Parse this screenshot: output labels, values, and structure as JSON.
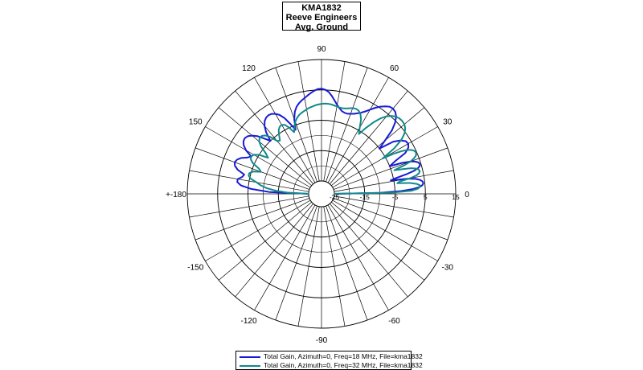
{
  "title_lines": [
    "KMA1832",
    "Reeve Engineers",
    "Avg. Ground"
  ],
  "chart_data": {
    "type": "polar",
    "radial_scale": {
      "min": -25,
      "max": 15,
      "ticks": [
        -25,
        -15,
        -5,
        5,
        15
      ],
      "tick_labels": [
        "-25",
        "-15",
        "-5",
        "5",
        "15"
      ]
    },
    "angle_labels": [
      {
        "angle": 0,
        "label": "0"
      },
      {
        "angle": 30,
        "label": "30"
      },
      {
        "angle": 60,
        "label": "60"
      },
      {
        "angle": 90,
        "label": "90"
      },
      {
        "angle": 120,
        "label": "120"
      },
      {
        "angle": 150,
        "label": "150"
      },
      {
        "angle": 180,
        "label": "+-180"
      },
      {
        "angle": -150,
        "label": "-150"
      },
      {
        "angle": -120,
        "label": "-120"
      },
      {
        "angle": -90,
        "label": "-90"
      },
      {
        "angle": -60,
        "label": "-60"
      },
      {
        "angle": -30,
        "label": "-30"
      }
    ],
    "grid": true,
    "spoke_step_deg": 10,
    "legend_position": "bottom-center",
    "series": [
      {
        "name": "Total Gain, Azimuth=0, Freq=18 MHz, File=kma1832",
        "color": "#1a1ad6",
        "angles": [
          0,
          1,
          2,
          3,
          4,
          5,
          6,
          7,
          8,
          9,
          10,
          11,
          12,
          13,
          14,
          15,
          16,
          17,
          18,
          19,
          20,
          21,
          22,
          24,
          26,
          28,
          30,
          32,
          34,
          36,
          38,
          40,
          42,
          44,
          46,
          48,
          50,
          52,
          54,
          56,
          58,
          60,
          62,
          64,
          66,
          68,
          70,
          72,
          74,
          76,
          78,
          80,
          82,
          84,
          86,
          88,
          90,
          92,
          94,
          96,
          98,
          100,
          102,
          104,
          106,
          108,
          110,
          112,
          114,
          116,
          118,
          120,
          122,
          124,
          126,
          128,
          130,
          132,
          134,
          136,
          138,
          140,
          142,
          144,
          146,
          148,
          150,
          152,
          154,
          156,
          158,
          160,
          162,
          164,
          166,
          168,
          170,
          172,
          174,
          176,
          178,
          180
        ],
        "gains": [
          -25,
          -10,
          -3,
          1,
          3.2,
          4.2,
          4.5,
          4.3,
          3.6,
          2.2,
          -0.5,
          -6,
          -4,
          -0.5,
          2.2,
          3.8,
          4.5,
          4.6,
          4.3,
          3.4,
          1.8,
          -0.8,
          -5,
          -2.5,
          1.5,
          3.2,
          3.8,
          3.5,
          2.2,
          0,
          -5,
          -2,
          2,
          4.5,
          6.2,
          7.1,
          7.4,
          7.2,
          6.4,
          5.4,
          4.2,
          2.8,
          1.5,
          0.5,
          -0.2,
          -0.8,
          -1.2,
          -1.5,
          -1.5,
          -1.2,
          -0.5,
          0.5,
          1.8,
          3.2,
          4.4,
          5.1,
          5.4,
          5.3,
          4.8,
          4.2,
          3.5,
          2.8,
          2.2,
          1.5,
          0.6,
          -0.8,
          -3,
          -6.5,
          -4,
          -1.5,
          0.2,
          1.2,
          1.8,
          2,
          1.8,
          1.2,
          0,
          -2,
          -5,
          -3,
          -0.8,
          0.6,
          1.6,
          2,
          1.8,
          1,
          -0.5,
          -3,
          -2,
          -0.2,
          0.8,
          1.2,
          0.8,
          -0.5,
          -3,
          -2.5,
          -1.2,
          -1.2,
          -2.5,
          -6,
          -12,
          -25
        ],
        "peak_gain": 7.4
      },
      {
        "name": "Total Gain, Azimuth=0, Freq=32 MHz, File=kma1832",
        "color": "#12898a",
        "angles": [
          0,
          1,
          2,
          3,
          4,
          5,
          6,
          7,
          8,
          9,
          10,
          11,
          12,
          13,
          14,
          15,
          16,
          17,
          18,
          19,
          20,
          21,
          22,
          23,
          24,
          25,
          26,
          27,
          28,
          29,
          30,
          32,
          34,
          36,
          38,
          40,
          42,
          44,
          46,
          48,
          50,
          52,
          54,
          56,
          58,
          60,
          62,
          64,
          66,
          68,
          70,
          72,
          74,
          76,
          78,
          80,
          82,
          84,
          86,
          88,
          90,
          92,
          94,
          96,
          98,
          100,
          102,
          104,
          106,
          108,
          110,
          112,
          114,
          116,
          118,
          120,
          122,
          124,
          126,
          128,
          130,
          132,
          134,
          136,
          138,
          140,
          142,
          144,
          146,
          148,
          150,
          152,
          154,
          156,
          158,
          160,
          162,
          164,
          166,
          168,
          170,
          172,
          174,
          176,
          178,
          180
        ],
        "gains": [
          -25,
          -6,
          0.5,
          2.5,
          3.3,
          3.3,
          2.3,
          0.2,
          -4,
          -3,
          0.5,
          2.6,
          3.6,
          4,
          3.8,
          3,
          1.4,
          -1.5,
          -4,
          -0.5,
          2,
          3.4,
          4.3,
          4.7,
          4.7,
          4.4,
          3.7,
          2.6,
          0.8,
          -2,
          -6,
          -1,
          2.5,
          4.6,
          5.8,
          6.4,
          6.6,
          6.5,
          6.1,
          5.3,
          4.1,
          2.3,
          -0.2,
          -3,
          -6,
          -4,
          -1.5,
          0,
          0.8,
          1,
          0.8,
          0.4,
          0,
          -0.2,
          -0.2,
          0,
          0.2,
          0.4,
          0.5,
          0.5,
          0.4,
          0.2,
          0,
          -0.3,
          -0.6,
          -1,
          -1.4,
          -1.8,
          -2.3,
          -3,
          -4,
          -5.5,
          -7,
          -5,
          -3.5,
          -3,
          -3.2,
          -4,
          -5.5,
          -7,
          -6.5,
          -4,
          -2.5,
          -1.8,
          -1.8,
          -2.4,
          -4,
          -6.5,
          -8,
          -5,
          -3.5,
          -3,
          -3.3,
          -4.5,
          -7,
          -8,
          -5.5,
          -4.5,
          -4.5,
          -5.5,
          -7.5,
          -9,
          -11,
          -14,
          -18,
          -25
        ],
        "peak_gain": 6.6
      }
    ]
  }
}
